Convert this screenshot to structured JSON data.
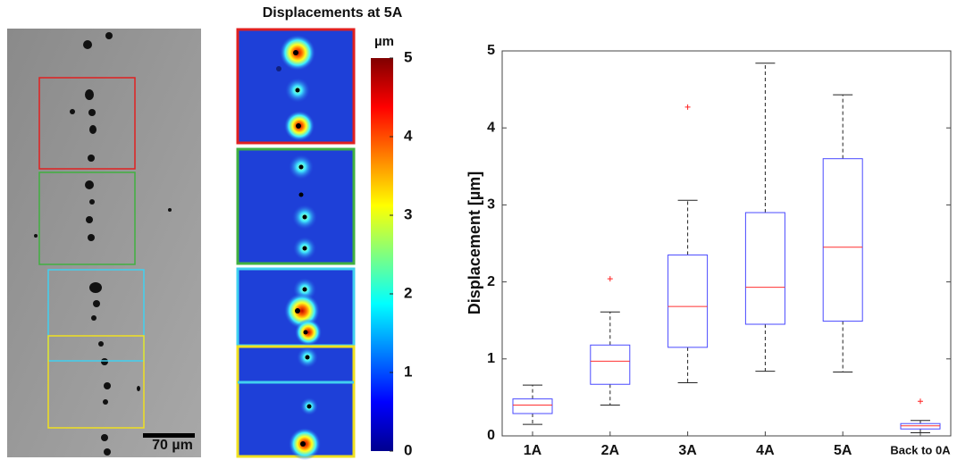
{
  "figure": {
    "scale_bar_label": "70 µm",
    "heatmap_title": "Displacements at 5A",
    "colorbar": {
      "label": "µm",
      "lim": [
        0,
        5
      ],
      "ticks": [
        0,
        1,
        2,
        3,
        4,
        5
      ]
    }
  },
  "chart_data": {
    "type": "box",
    "ylabel": "Displacement [µm]",
    "categories": [
      "1A",
      "2A",
      "3A",
      "4A",
      "5A",
      "Back to 0A"
    ],
    "box_color": "#4a4aff",
    "median_color": "#ff3030",
    "outlier_color": "#ff2020",
    "boxes": [
      {
        "whislo": 0.15,
        "q1": 0.29,
        "med": 0.4,
        "q3": 0.48,
        "whishi": 0.66,
        "outliers": []
      },
      {
        "whislo": 0.4,
        "q1": 0.67,
        "med": 0.97,
        "q3": 1.18,
        "whishi": 1.61,
        "outliers": [
          2.04
        ]
      },
      {
        "whislo": 0.69,
        "q1": 1.15,
        "med": 1.68,
        "q3": 2.35,
        "whishi": 3.06,
        "outliers": [
          4.27
        ]
      },
      {
        "whislo": 0.84,
        "q1": 1.45,
        "med": 1.93,
        "q3": 2.9,
        "whishi": 4.84,
        "outliers": []
      },
      {
        "whislo": 0.83,
        "q1": 1.49,
        "med": 2.45,
        "q3": 3.6,
        "whishi": 4.43,
        "outliers": []
      },
      {
        "whislo": 0.04,
        "q1": 0.09,
        "med": 0.13,
        "q3": 0.16,
        "whishi": 0.2,
        "outliers": [
          0.45
        ]
      }
    ],
    "ylim": [
      0,
      5
    ],
    "yticks": [
      0,
      1,
      2,
      3,
      4,
      5
    ]
  }
}
